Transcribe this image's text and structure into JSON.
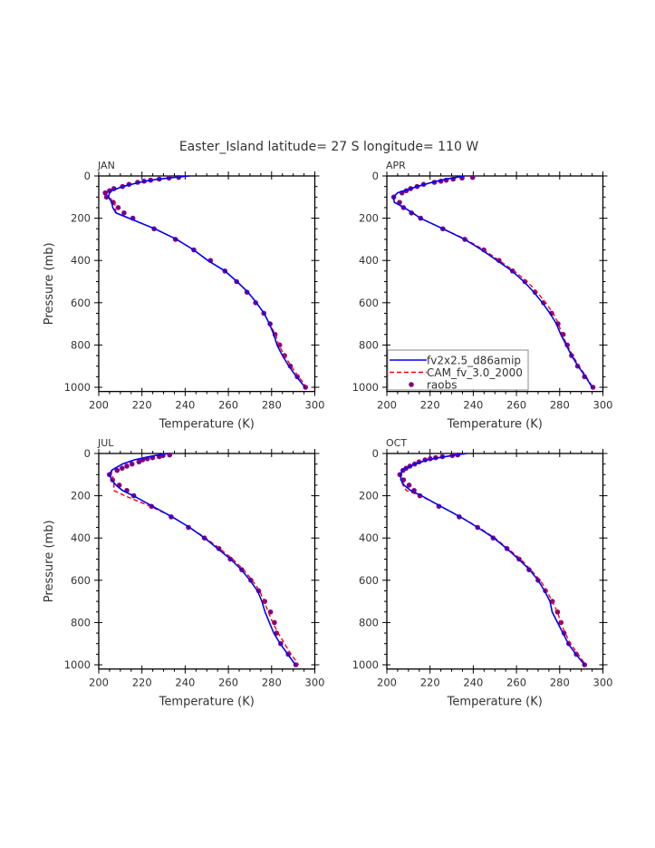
{
  "title": "Easter_Island  latitude= 27 S longitude= 110 W",
  "colors": {
    "model1": "#0000ff",
    "model2": "#ff0000",
    "obs": "#800080"
  },
  "chart_data": {
    "type": "line",
    "xlabel": "Temperature (K)",
    "ylabel": "Pressure (mb)",
    "xlim": [
      200,
      300
    ],
    "ylim": [
      1020,
      0
    ],
    "y_reversed": true,
    "xticks": [
      200,
      220,
      240,
      260,
      280,
      300
    ],
    "yticks": [
      0,
      200,
      400,
      600,
      800,
      1000
    ],
    "legend": {
      "panel": "APR",
      "placement": "bottom-left",
      "entries": [
        {
          "label": "fv2x2.5_d86amip",
          "style": "solid",
          "color": "#0000ff"
        },
        {
          "label": "CAM_fv_3.0_2000",
          "style": "dashed",
          "color": "#ff0000"
        },
        {
          "label": "raobs",
          "style": "marker",
          "color": "#800080"
        }
      ]
    },
    "model_levels": [
      0,
      10,
      20,
      30,
      50,
      70,
      80,
      100,
      125,
      150,
      175,
      200,
      250,
      300,
      350,
      400,
      450,
      500,
      550,
      600,
      650,
      700,
      750,
      800,
      850,
      900,
      950,
      1000
    ],
    "obs_levels": [
      7,
      10,
      15,
      20,
      25,
      30,
      40,
      50,
      60,
      70,
      80,
      100,
      125,
      150,
      175,
      200,
      250,
      300,
      350,
      400,
      450,
      500,
      550,
      600,
      650,
      700,
      750,
      800,
      850,
      900,
      950,
      1000
    ],
    "panels": [
      {
        "label": "JAN",
        "series": [
          {
            "name": "fv2x2.5_d86amip",
            "values": [
              242,
              232,
              224,
              219,
              211,
              206,
              205,
              204.5,
              206,
              206.5,
              208,
              214,
              226,
              236,
              244,
              250.5,
              258.5,
              264,
              269,
              273,
              276.5,
              279,
              281,
              282.5,
              285,
              288,
              291.5,
              295.5
            ]
          },
          {
            "name": "CAM_fv_3.0_2000",
            "values": [
              242,
              232,
              224,
              219,
              211,
              206,
              205,
              204.5,
              207.5,
              207.5,
              208,
              214,
              226,
              236,
              244,
              250.5,
              258.5,
              264,
              269,
              273,
              276.5,
              279,
              281.8,
              283.3,
              286,
              289,
              292.5,
              296.3
            ]
          }
        ],
        "obs": [
          237,
          232.5,
          228,
          224,
          221,
          218,
          214,
          211,
          207,
          205,
          203,
          203.6,
          206.7,
          209,
          211.7,
          215.8,
          225.6,
          235.5,
          244,
          251.7,
          258.4,
          263.8,
          268.6,
          272.6,
          276.4,
          279.3,
          281.6,
          283.7,
          286,
          288.7,
          291.9,
          295.7
        ]
      },
      {
        "label": "APR",
        "series": [
          {
            "name": "fv2x2.5_d86amip",
            "values": [
              236,
              230,
              225,
              221,
              214,
              208,
              205,
              203,
              203.5,
              208,
              212,
              215.5,
              226,
              236,
              244,
              251,
              258,
              263.5,
              268,
              272,
              275.5,
              278.5,
              280.5,
              283,
              285.5,
              288.5,
              292,
              295
            ]
          },
          {
            "name": "CAM_fv_3.0_2000",
            "values": [
              236,
              230,
              225,
              221,
              214,
              208,
              205,
              203,
              203.5,
              208,
              212,
              215.5,
              226,
              236.5,
              245,
              252,
              259,
              265,
              269.5,
              273.5,
              277,
              279.5,
              281,
              283.5,
              286,
              289,
              292.3,
              295.3
            ]
          }
        ],
        "obs": [
          239.7,
          234.8,
          230.7,
          227.5,
          225,
          222,
          217,
          214,
          211,
          209,
          207,
          203.2,
          205.9,
          207.7,
          211.4,
          215.6,
          225.9,
          236.1,
          244.9,
          251.9,
          258.2,
          263.9,
          268.6,
          272.5,
          276.3,
          279.2,
          281.6,
          283.5,
          285.5,
          288.3,
          291.5,
          295.4
        ]
      },
      {
        "label": "JUL",
        "series": [
          {
            "name": "fv2x2.5_d86amip",
            "values": [
              232,
              226,
              221,
              216.5,
              211,
              207.5,
              206,
              205,
              206,
              208,
              211,
              216,
              225,
              234,
              242,
              249,
              255,
              261,
              266,
              270,
              273.5,
              275.5,
              277,
              279,
              281,
              284,
              287.5,
              291
            ]
          },
          {
            "name": "CAM_fv_3.0_2000",
            "values": [
              232,
              226,
              221,
              216.5,
              211,
              207.5,
              206,
              206,
              207,
              207,
              207,
              212,
              224,
              234,
              242,
              249.5,
              256,
              262,
              267,
              271,
              274.5,
              276.5,
              278.5,
              280.5,
              283,
              286,
              289,
              292.5
            ]
          }
        ],
        "obs": [
          232.8,
          229.7,
          228,
          224.9,
          222.5,
          220.3,
          218.6,
          215.4,
          213,
          210.8,
          208.5,
          204.9,
          206.4,
          209.5,
          213,
          216.2,
          224.4,
          233.5,
          241.5,
          248.9,
          255.6,
          260.9,
          266.2,
          270.4,
          274,
          276.8,
          279.5,
          281.3,
          282.3,
          284.2,
          287.7,
          291.2
        ]
      },
      {
        "label": "OCT",
        "series": [
          {
            "name": "fv2x2.5_d86amip",
            "values": [
              237,
              230,
              224,
              219,
              213,
              209,
              207,
              206.5,
              206.5,
              208,
              211,
              216,
              225,
              234,
              242,
              249.5,
              255.5,
              261,
              266,
              270,
              273,
              275.5,
              276.5,
              279,
              281.5,
              284,
              287.5,
              291.5
            ]
          },
          {
            "name": "CAM_fv_3.0_2000",
            "values": [
              237,
              230,
              224,
              219,
              213,
              209,
              207,
              206.5,
              206.5,
              207.5,
              209,
              215.5,
              225,
              234,
              242.5,
              250,
              256,
              262,
              266.5,
              271,
              274,
              276.5,
              279,
              280.5,
              282.5,
              285,
              288.5,
              292
            ]
          }
        ],
        "obs": [
          232.8,
          230.3,
          225.7,
          222.6,
          220.1,
          217.7,
          214.9,
          212.9,
          210.7,
          208.9,
          207.5,
          206,
          207.7,
          210.3,
          212.6,
          215.3,
          224.1,
          233.5,
          242,
          249.2,
          255.6,
          261.2,
          265.8,
          270,
          273.4,
          276.6,
          279,
          280.6,
          282,
          284.2,
          287.7,
          291.5
        ]
      }
    ]
  }
}
